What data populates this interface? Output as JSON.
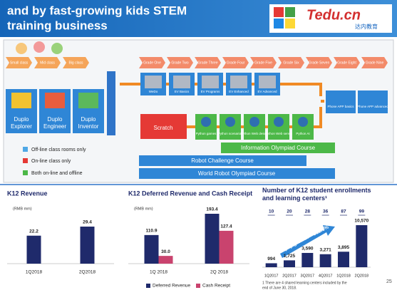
{
  "header": {
    "title_lines": [
      "and by fast-growing kids STEM",
      "training business"
    ],
    "logo": "Tedu.cn",
    "logo_sub": "达内教育"
  },
  "diagram": {
    "stages": [
      "Small class",
      "Mid class",
      "Big class",
      "Grade One",
      "Grade Two",
      "Grade Three",
      "Grade Four",
      "Grade Five",
      "Grade Six",
      "Grade Seven",
      "Grade Eight",
      "Grade Nine"
    ],
    "duplo": [
      "Duplo Explorer",
      "Duplo Engineer",
      "Duplo Inventor"
    ],
    "robots": [
      "WeDo",
      "EV Basics",
      "EV Programs",
      "EV Enhanced",
      "EV Advanced"
    ],
    "scratch": "Scratch",
    "python": [
      "Python games",
      "Python scenarios",
      "Python Web design",
      "Python Web server",
      "Python AI"
    ],
    "phone": [
      "Phone APP basics",
      "Phone APP advanced"
    ],
    "courses": [
      "Information Olympiad Course",
      "Robot Challenge Course",
      "World Robot Olympiad Course"
    ],
    "legend": [
      "Off-line class rooms only",
      "On-line class only",
      "Both on-line and offline"
    ]
  },
  "chart_data": [
    {
      "type": "bar",
      "title": "K12 Revenue",
      "unit": "(RMB mm)",
      "categories": [
        "1Q2018",
        "2Q2018"
      ],
      "values": [
        22.2,
        29.4
      ],
      "color": "#1f2a6b"
    },
    {
      "type": "grouped-bar",
      "title": "K12 Deferred Revenue and Cash Receipt",
      "unit": "(RMB mm)",
      "categories": [
        "1Q 2018",
        "2Q 2018"
      ],
      "series": [
        {
          "name": "Deferred Revenue",
          "color": "#1f2a6b",
          "values": [
            110.9,
            193.4
          ]
        },
        {
          "name": "Cash Receipt",
          "color": "#c9436e",
          "values": [
            30.0,
            127.4
          ],
          "value_labels": [
            "30.0",
            "127.4"
          ]
        }
      ]
    },
    {
      "type": "bar",
      "title": "Number of K12 student enrollments and learning centers¹",
      "categories": [
        "1Q2017",
        "2Q2017",
        "3Q2017",
        "4Q2017",
        "1Q2018",
        "2Q2018"
      ],
      "values": [
        994,
        1725,
        3590,
        3271,
        3895,
        10570
      ],
      "value_labels": [
        "994",
        "1,725",
        "3,590",
        "3,271",
        "3,895",
        "10,570"
      ],
      "color": "#1f2a6b",
      "learning_centers": [
        10,
        20,
        28,
        36,
        87,
        99
      ],
      "annotation": "yoy growth = 512.6%",
      "footnote": [
        "1  There are 4 shared learning centers included by the",
        "end of June 30, 2018."
      ]
    }
  ],
  "page_number": "25"
}
